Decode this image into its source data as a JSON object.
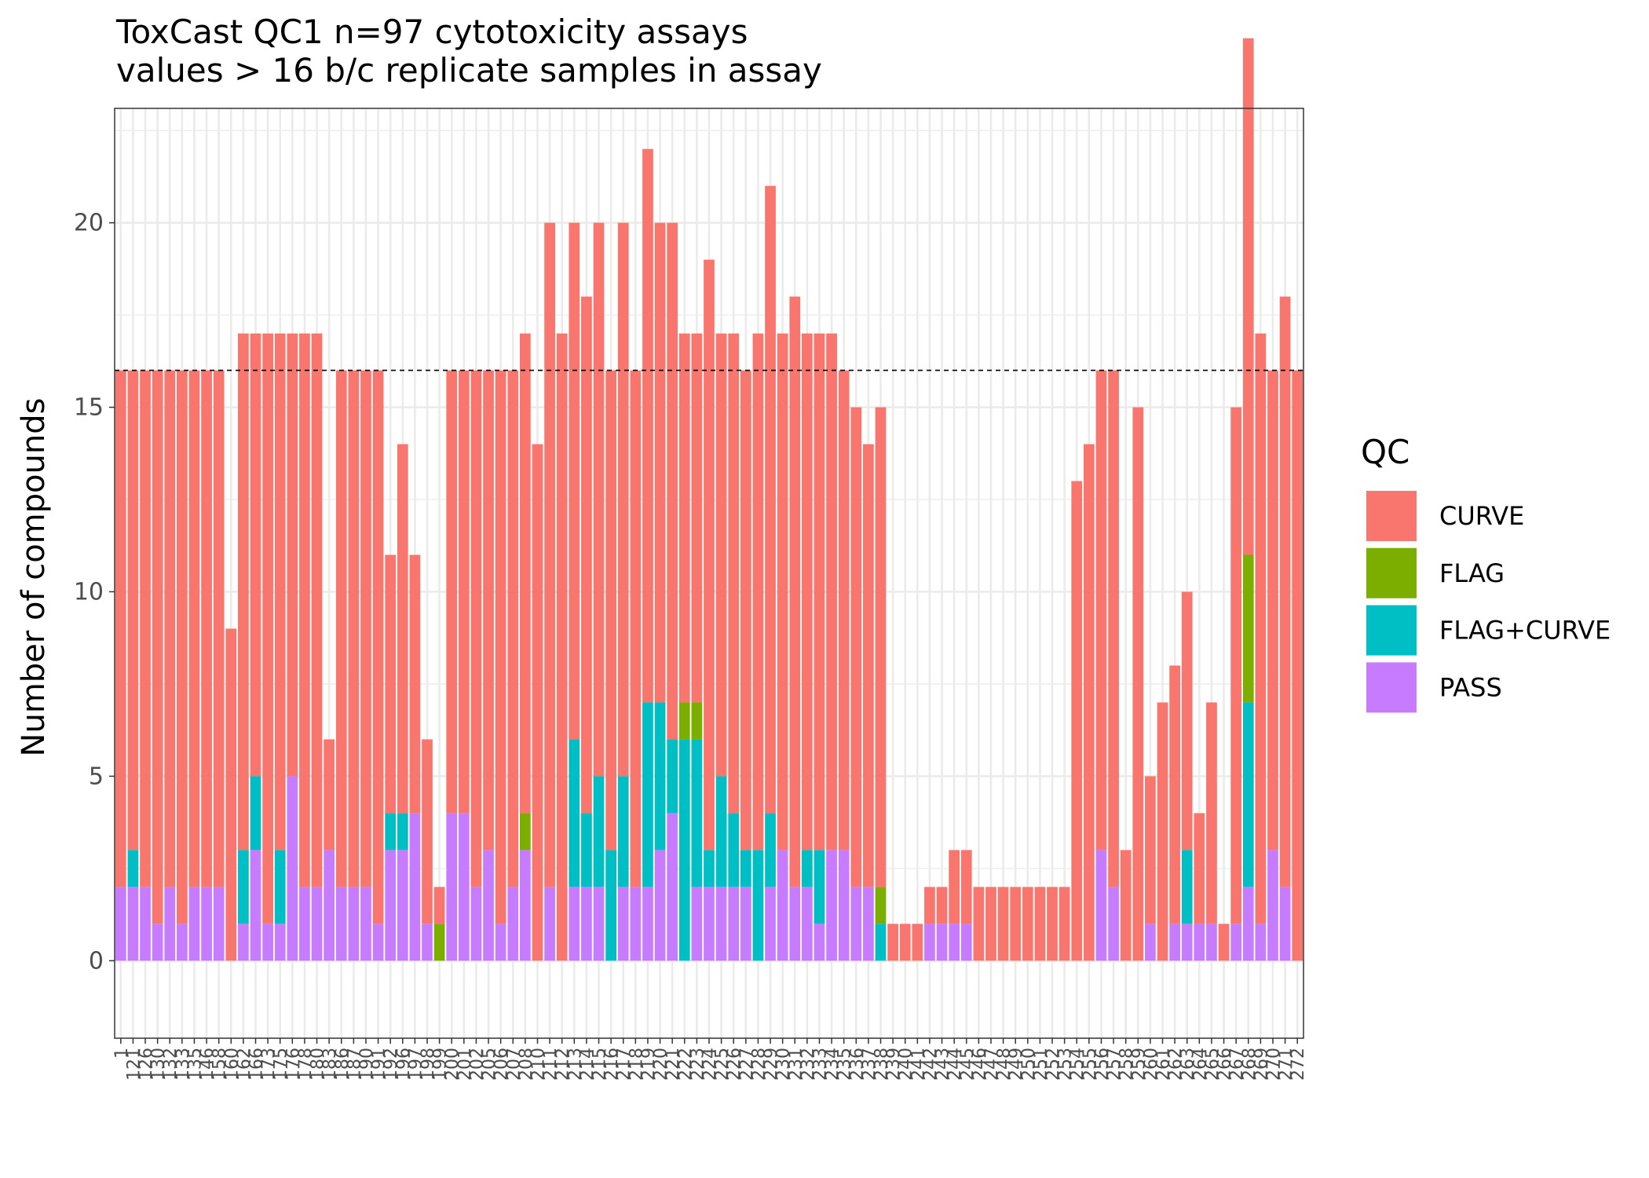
{
  "chart_data": {
    "type": "bar",
    "stacked": true,
    "title": "ToxCast QC1 n=97 cytotoxicity assays",
    "subtitle": "values > 16 b/c replicate samples in assay",
    "xlabel": "",
    "ylabel": "Number of compounds",
    "ylim": [
      -2.1,
      23.1
    ],
    "yticks": [
      0,
      5,
      10,
      15,
      20
    ],
    "reference_line": 16,
    "grid": true,
    "legend": {
      "title": "QC",
      "position": "right",
      "entries": [
        "CURVE",
        "FLAG",
        "FLAG+CURVE",
        "PASS"
      ]
    },
    "colors": {
      "CURVE": "#F8766D",
      "FLAG": "#7CAE00",
      "FLAG+CURVE": "#00BFC4",
      "PASS": "#C77CFF"
    },
    "categories": [
      "1",
      "121",
      "126",
      "130",
      "132",
      "133",
      "135",
      "146",
      "158",
      "160",
      "162",
      "166",
      "173",
      "175",
      "176",
      "178",
      "180",
      "183",
      "186",
      "187",
      "190",
      "191",
      "192",
      "196",
      "197",
      "198",
      "199",
      "200",
      "201",
      "202",
      "205",
      "206",
      "207",
      "208",
      "210",
      "211",
      "212",
      "213",
      "214",
      "215",
      "216",
      "217",
      "218",
      "219",
      "220",
      "221",
      "222",
      "223",
      "224",
      "225",
      "226",
      "227",
      "228",
      "229",
      "230",
      "231",
      "232",
      "233",
      "234",
      "235",
      "236",
      "237",
      "238",
      "239",
      "240",
      "241",
      "242",
      "243",
      "244",
      "245",
      "246",
      "247",
      "248",
      "249",
      "250",
      "251",
      "252",
      "253",
      "254",
      "255",
      "256",
      "257",
      "258",
      "259",
      "260",
      "261",
      "262",
      "263",
      "264",
      "265",
      "266",
      "267",
      "268",
      "269",
      "270",
      "271",
      "272"
    ],
    "series": [
      {
        "name": "PASS",
        "values": [
          2,
          2,
          2,
          1,
          2,
          1,
          2,
          2,
          2,
          0,
          1,
          3,
          1,
          1,
          5,
          2,
          2,
          3,
          2,
          2,
          2,
          1,
          3,
          3,
          4,
          1,
          0,
          4,
          4,
          2,
          3,
          1,
          2,
          3,
          0,
          2,
          0,
          2,
          2,
          2,
          0,
          2,
          2,
          2,
          3,
          4,
          0,
          2,
          2,
          2,
          2,
          2,
          0,
          2,
          3,
          2,
          2,
          1,
          3,
          3,
          2,
          2,
          0,
          0,
          0,
          0,
          1,
          1,
          1,
          1,
          0,
          0,
          0,
          0,
          0,
          0,
          0,
          0,
          0,
          0,
          3,
          2,
          0,
          0,
          1,
          0,
          1,
          1,
          1,
          1,
          0,
          1,
          2,
          1,
          3,
          2,
          0
        ]
      },
      {
        "name": "FLAG+CURVE",
        "values": [
          0,
          1,
          0,
          0,
          0,
          0,
          0,
          0,
          0,
          0,
          2,
          2,
          0,
          2,
          0,
          0,
          0,
          0,
          0,
          0,
          0,
          0,
          1,
          1,
          0,
          0,
          0,
          0,
          0,
          0,
          0,
          0,
          0,
          0,
          0,
          0,
          0,
          4,
          2,
          3,
          3,
          3,
          0,
          5,
          4,
          2,
          6,
          4,
          1,
          3,
          2,
          1,
          3,
          2,
          0,
          0,
          1,
          2,
          0,
          0,
          0,
          0,
          1,
          0,
          0,
          0,
          0,
          0,
          0,
          0,
          0,
          0,
          0,
          0,
          0,
          0,
          0,
          0,
          0,
          0,
          0,
          0,
          0,
          0,
          0,
          0,
          0,
          2,
          0,
          0,
          0,
          0,
          5,
          0,
          0,
          0,
          0
        ]
      },
      {
        "name": "FLAG",
        "values": [
          0,
          0,
          0,
          0,
          0,
          0,
          0,
          0,
          0,
          0,
          0,
          0,
          0,
          0,
          0,
          0,
          0,
          0,
          0,
          0,
          0,
          0,
          0,
          0,
          0,
          0,
          1,
          0,
          0,
          0,
          0,
          0,
          0,
          1,
          0,
          0,
          0,
          0,
          0,
          0,
          0,
          0,
          0,
          0,
          0,
          0,
          1,
          1,
          0,
          0,
          0,
          0,
          0,
          0,
          0,
          0,
          0,
          0,
          0,
          0,
          0,
          0,
          1,
          0,
          0,
          0,
          0,
          0,
          0,
          0,
          0,
          0,
          0,
          0,
          0,
          0,
          0,
          0,
          0,
          0,
          0,
          0,
          0,
          0,
          0,
          0,
          0,
          0,
          0,
          0,
          0,
          0,
          4,
          0,
          0,
          0,
          0
        ]
      },
      {
        "name": "CURVE",
        "values": [
          14,
          13,
          14,
          15,
          14,
          15,
          14,
          14,
          14,
          9,
          14,
          12,
          16,
          14,
          12,
          15,
          15,
          3,
          14,
          14,
          14,
          15,
          7,
          10,
          7,
          5,
          1,
          12,
          12,
          14,
          13,
          15,
          14,
          13,
          14,
          18,
          17,
          14,
          14,
          15,
          13,
          15,
          14,
          15,
          13,
          14,
          10,
          10,
          16,
          12,
          13,
          13,
          14,
          17,
          14,
          16,
          14,
          14,
          14,
          13,
          13,
          12,
          13,
          1,
          1,
          1,
          1,
          1,
          2,
          2,
          2,
          2,
          2,
          2,
          2,
          2,
          2,
          2,
          13,
          14,
          13,
          14,
          3,
          15,
          4,
          7,
          7,
          7,
          3,
          6,
          1,
          14,
          14,
          16,
          13,
          16,
          16
        ]
      }
    ]
  }
}
